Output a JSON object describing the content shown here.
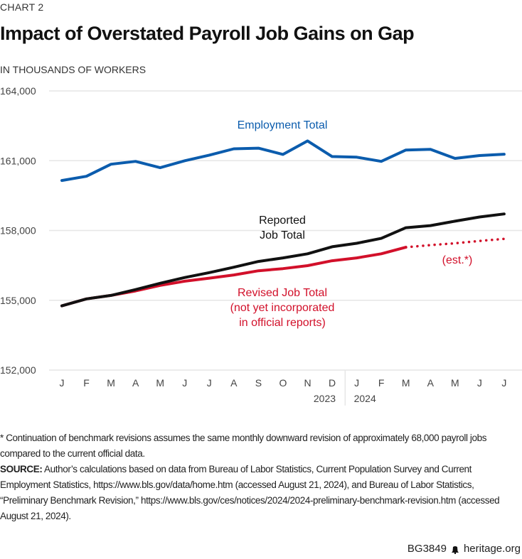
{
  "header": {
    "kicker": "CHART 2",
    "title": "Impact of Overstated Payroll Job Gains on Gap",
    "units": "IN THOUSANDS OF WORKERS"
  },
  "colors": {
    "employment": "#0b5cad",
    "reported": "#111111",
    "revised": "#d2102a",
    "grid": "#e6e6e6",
    "tick_text": "#444444"
  },
  "chart_data": {
    "type": "line",
    "title": "Impact of Overstated Payroll Job Gains on Gap",
    "ylabel": "In thousands of workers",
    "xlabel": "",
    "ylim": [
      152000,
      164000
    ],
    "yticks": [
      164000,
      161000,
      158000,
      155000,
      152000
    ],
    "ytick_labels": [
      "164,000",
      "161,000",
      "158,000",
      "155,000",
      "152,000"
    ],
    "grid": true,
    "categories": [
      "J",
      "F",
      "M",
      "A",
      "M",
      "J",
      "J",
      "A",
      "S",
      "O",
      "N",
      "D",
      "J",
      "F",
      "M",
      "A",
      "M",
      "J",
      "J"
    ],
    "year_labels": [
      {
        "label": "2023",
        "after_index": 11,
        "align": "right"
      },
      {
        "label": "2024",
        "at_index": 12,
        "align": "left"
      }
    ],
    "series": [
      {
        "name": "Employment Total",
        "label_lines": [
          "Employment Total"
        ],
        "style": "solid",
        "values": [
          160150,
          160330,
          160850,
          160970,
          160700,
          161000,
          161240,
          161510,
          161540,
          161270,
          161850,
          161180,
          161150,
          160970,
          161460,
          161490,
          161100,
          161220,
          161280
        ]
      },
      {
        "name": "Reported Job Total",
        "label_lines": [
          "Reported",
          "Job Total"
        ],
        "style": "solid",
        "values": [
          154760,
          155060,
          155210,
          155460,
          155730,
          155980,
          156190,
          156420,
          156670,
          156820,
          157000,
          157300,
          157450,
          157660,
          158120,
          158210,
          158400,
          158580,
          158710
        ]
      },
      {
        "name": "Revised Job Total",
        "label_lines": [
          "Revised Job Total",
          "(not yet incorporated",
          "in official reports)"
        ],
        "style": "solid",
        "values": [
          154760,
          155060,
          155210,
          155400,
          155640,
          155820,
          155950,
          156090,
          156270,
          156360,
          156490,
          156700,
          156820,
          157000,
          157280,
          null,
          null,
          null,
          null
        ]
      },
      {
        "name": "Revised Job Total (est.*)",
        "label_lines": [
          "(est.*)"
        ],
        "style": "dotted",
        "values": [
          null,
          null,
          null,
          null,
          null,
          null,
          null,
          null,
          null,
          null,
          null,
          null,
          null,
          null,
          157280,
          157370,
          157450,
          157550,
          157640
        ]
      }
    ]
  },
  "footnote": {
    "note": "* Continuation of benchmark revisions assumes the same monthly downward revision of approximately 68,000 payroll jobs compared to the current official data.",
    "source_label": "SOURCE:",
    "source_text": " Author’s calculations based on data from Bureau of Labor Statistics, Current Population Survey and Current Employment Statistics, https://www.bls.gov/data/home.htm (accessed August 21, 2024), and Bureau of Labor Statistics, “Preliminary Benchmark Revision,” https://www.bls.gov/ces/notices/2024/2024-preliminary-benchmark-revision.htm (accessed August 21, 2024)."
  },
  "brand": {
    "code": "BG3849",
    "site": "heritage.org",
    "icon": "liberty-bell-icon"
  }
}
